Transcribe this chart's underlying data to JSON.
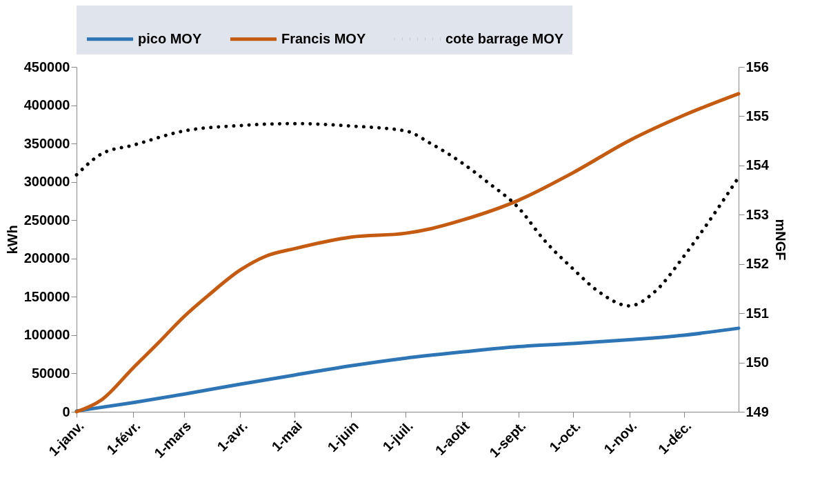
{
  "chart_data": {
    "type": "line",
    "ylabel": "kWh",
    "y2label": "mNGF",
    "xlim": [
      "--01-01",
      "--12-31"
    ],
    "xticks": [
      {
        "value": "--01-01",
        "label": "1-janv."
      },
      {
        "value": "--02-01",
        "label": "1-févr."
      },
      {
        "value": "--03-01",
        "label": "1-mars"
      },
      {
        "value": "--04-01",
        "label": "1-avr."
      },
      {
        "value": "--05-01",
        "label": "1-mai"
      },
      {
        "value": "--06-01",
        "label": "1-juin"
      },
      {
        "value": "--07-01",
        "label": "1-juil."
      },
      {
        "value": "--08-01",
        "label": "1-août"
      },
      {
        "value": "--09-01",
        "label": "1-sept."
      },
      {
        "value": "--10-01",
        "label": "1-oct."
      },
      {
        "value": "--11-01",
        "label": "1-nov."
      },
      {
        "value": "--12-01",
        "label": "1-déc."
      }
    ],
    "ylim": [
      0,
      450000
    ],
    "yticks": [
      0,
      50000,
      100000,
      150000,
      200000,
      250000,
      300000,
      350000,
      400000,
      450000
    ],
    "y2lim": [
      149,
      156
    ],
    "y2ticks": [
      149,
      150,
      151,
      152,
      153,
      154,
      155,
      156
    ],
    "grid": false,
    "legend": "top",
    "marker": "none",
    "series": [
      {
        "name": "pico MOY",
        "color": "#2e75b6",
        "line_style": "solid",
        "x": [
          "--01-01",
          "--02-01",
          "--03-01",
          "--04-01",
          "--05-01",
          "--06-01",
          "--07-01",
          "--08-01",
          "--09-01",
          "--10-01",
          "--11-01",
          "--12-01",
          "--12-31"
        ],
        "values": [
          1000,
          12000,
          23000,
          36000,
          48000,
          60000,
          70000,
          78000,
          85000,
          89000,
          94000,
          100000,
          109000
        ]
      },
      {
        "name": "Francis MOY",
        "color": "#c55a11",
        "line_style": "solid",
        "x": [
          "--01-01",
          "--01-15",
          "--02-01",
          "--02-15",
          "--03-01",
          "--03-15",
          "--04-01",
          "--04-15",
          "--05-01",
          "--06-01",
          "--07-01",
          "--07-15",
          "--08-01",
          "--09-01",
          "--10-01",
          "--11-01",
          "--12-01",
          "--12-31"
        ],
        "values": [
          0,
          16000,
          57000,
          90000,
          124000,
          153000,
          185000,
          203000,
          213000,
          228000,
          233000,
          239000,
          250000,
          276000,
          312000,
          354000,
          387000,
          415000
        ]
      },
      {
        "name": "cote barrage MOY",
        "color": "#000000",
        "line_style": "dotted",
        "axis": "y2",
        "x": [
          "--01-01",
          "--01-15",
          "--02-01",
          "--03-01",
          "--04-01",
          "--05-01",
          "--06-01",
          "--07-01",
          "--07-15",
          "--08-01",
          "--08-15",
          "--09-01",
          "--09-15",
          "--10-01",
          "--10-15",
          "--11-01",
          "--11-15",
          "--12-01",
          "--12-15",
          "--12-31"
        ],
        "values": [
          153.81,
          154.24,
          154.41,
          154.7,
          154.81,
          154.85,
          154.8,
          154.7,
          154.44,
          154.05,
          153.66,
          153.14,
          152.49,
          151.9,
          151.44,
          151.15,
          151.44,
          152.16,
          152.88,
          153.76
        ]
      }
    ]
  }
}
